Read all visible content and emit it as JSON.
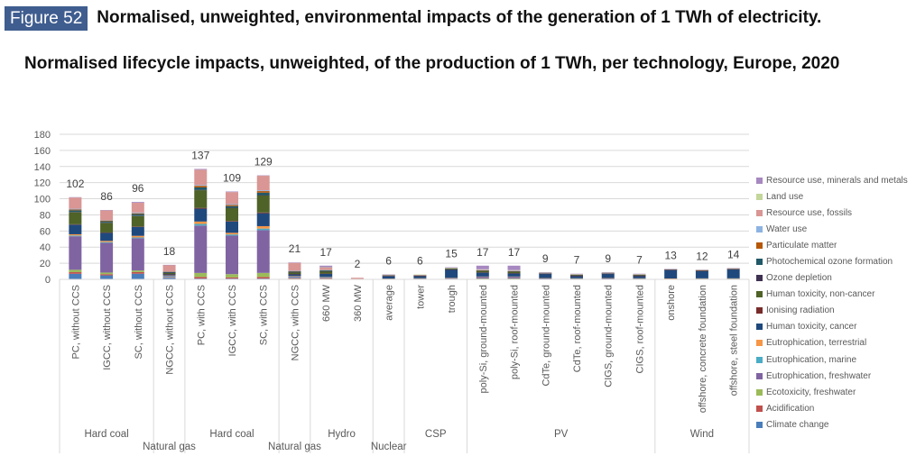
{
  "figure": {
    "label": "Figure 52",
    "caption": "Normalised, unweighted, environmental impacts of the generation of 1 TWh of electricity.",
    "badge_color": "#3f5d8f"
  },
  "chart_data": {
    "type": "bar",
    "stacked": true,
    "title": "Normalised lifecycle impacts, unweighted, of the production of 1 TWh, per technology, Europe, 2020",
    "xlabel": "",
    "ylabel": "",
    "ylim": [
      0,
      180
    ],
    "yticks": [
      0,
      20,
      40,
      60,
      80,
      100,
      120,
      140,
      160,
      180
    ],
    "grid": true,
    "legend_position": "right",
    "groups": [
      {
        "name": "Hard coal",
        "count": 3,
        "label_row": 1
      },
      {
        "name": "Natural gas",
        "count": 1,
        "label_row": 2
      },
      {
        "name": "Hard coal",
        "count": 3,
        "label_row": 1
      },
      {
        "name": "Natural gas",
        "count": 1,
        "label_row": 2
      },
      {
        "name": "Hydro",
        "count": 2,
        "label_row": 1
      },
      {
        "name": "Nuclear",
        "count": 1,
        "label_row": 2
      },
      {
        "name": "CSP",
        "count": 2,
        "label_row": 1
      },
      {
        "name": "PV",
        "count": 6,
        "label_row": 1
      },
      {
        "name": "Wind",
        "count": 3,
        "label_row": 1
      }
    ],
    "categories": [
      "PC, without CCS",
      "IGCC, without CCS",
      "SC, without CCS",
      "NGCC, without CCS",
      "PC, with CCS",
      "IGCC, with CCS",
      "SC, with CCS",
      "NGCC, with CCS",
      "660 MW",
      "360 MW",
      "average",
      "tower",
      "trough",
      "poly-Si, ground-mounted",
      "poly-Si, roof-mounted",
      "CdTe, ground-mounted",
      "CdTe, roof-mounted",
      "CIGS, ground-mounted",
      "CIGS, roof-mounted",
      "onshore",
      "offshore, concrete foundation",
      "offshore, steel foundation"
    ],
    "totals": [
      102,
      86,
      96,
      18,
      137,
      109,
      129,
      21,
      17,
      2,
      6,
      6,
      15,
      17,
      17,
      9,
      7,
      9,
      7,
      13,
      12,
      14
    ],
    "series": [
      {
        "name": "Climate change",
        "color": "#4a7ebb",
        "values": [
          7,
          5,
          7,
          2,
          1,
          1,
          1,
          0.5,
          0.5,
          0,
          0.2,
          0.3,
          0.3,
          0.4,
          0.4,
          0.3,
          0.3,
          0.3,
          0.3,
          0.3,
          0.3,
          0.3
        ]
      },
      {
        "name": "Acidification",
        "color": "#c0504d",
        "values": [
          2,
          1.5,
          2,
          0.5,
          2,
          1.5,
          2,
          0.5,
          0.5,
          0,
          0.1,
          0.2,
          0.2,
          0.3,
          0.3,
          0.1,
          0.1,
          0.1,
          0.1,
          0.2,
          0.3,
          0.3
        ]
      },
      {
        "name": "Ecotoxicity, freshwater",
        "color": "#9bbb59",
        "values": [
          3,
          2,
          2,
          0.5,
          5,
          4,
          5,
          0.5,
          0.5,
          0,
          0.2,
          0.2,
          0.3,
          0.4,
          0.4,
          0.2,
          0.2,
          0.2,
          0.2,
          0.2,
          0.2,
          0.2
        ]
      },
      {
        "name": "Eutrophication, freshwater",
        "color": "#8064a2",
        "values": [
          42,
          37,
          40,
          1,
          59,
          48,
          53,
          1.5,
          1,
          0,
          0.3,
          0.5,
          1,
          2,
          2,
          0.8,
          0.6,
          0.8,
          0.6,
          0.3,
          0.3,
          0.3
        ]
      },
      {
        "name": "Eutrophication, marine",
        "color": "#4bacc6",
        "values": [
          1,
          1,
          1,
          0.5,
          2,
          1.5,
          2,
          0.5,
          0.3,
          0,
          0.1,
          0.2,
          0.2,
          0.2,
          0.2,
          0.1,
          0.1,
          0.1,
          0.1,
          0.1,
          0.1,
          0.1
        ]
      },
      {
        "name": "Eutrophication, terrestrial",
        "color": "#f79646",
        "values": [
          1.5,
          1.5,
          2,
          0.5,
          3,
          2,
          3,
          0.5,
          0.3,
          0,
          0.1,
          0.1,
          0.1,
          0.2,
          0.2,
          0.1,
          0.1,
          0.1,
          0.1,
          0.1,
          0.1,
          0.1
        ]
      },
      {
        "name": "Human toxicity, cancer",
        "color": "#1f497d",
        "values": [
          12,
          10,
          11,
          1.5,
          16,
          14,
          16,
          2.5,
          4,
          0,
          3.5,
          3,
          11,
          5,
          4,
          5.5,
          3,
          5.5,
          3,
          11.5,
          9.5,
          11.5
        ]
      },
      {
        "name": "Ionising radiation",
        "color": "#772c2a",
        "values": [
          0.5,
          0.5,
          0.5,
          0.2,
          1,
          0.8,
          1,
          0.2,
          0.2,
          0,
          0.8,
          0.1,
          0.1,
          0.2,
          0.2,
          0.1,
          0.1,
          0.1,
          0.1,
          0.1,
          0.1,
          0.1
        ]
      },
      {
        "name": "Human toxicity, non-cancer",
        "color": "#4f6228",
        "values": [
          15,
          12,
          13,
          1.5,
          22,
          16,
          21,
          2,
          3,
          0,
          0.5,
          0.5,
          1,
          2,
          2,
          0.5,
          1,
          0.5,
          1,
          0.3,
          0.5,
          0.5
        ]
      },
      {
        "name": "Ozone depletion",
        "color": "#3f3151",
        "values": [
          0.5,
          0.5,
          0.5,
          0.2,
          0.5,
          0.5,
          0.5,
          0.2,
          0.1,
          0,
          0,
          0,
          0,
          0.1,
          0.1,
          0.1,
          0.1,
          0.1,
          0.1,
          0,
          0,
          0
        ]
      },
      {
        "name": "Photochemical ozone formation",
        "color": "#215968",
        "values": [
          2,
          1.5,
          2,
          1,
          3,
          2,
          3,
          1,
          1,
          0,
          0.1,
          0.2,
          0.3,
          0.3,
          0.3,
          0.1,
          0.2,
          0.1,
          0.2,
          0.1,
          0.2,
          0.2
        ]
      },
      {
        "name": "Particulate matter",
        "color": "#b65708",
        "values": [
          1,
          1,
          1,
          0.2,
          2,
          1.5,
          2,
          0.3,
          0.5,
          0,
          0.1,
          0.1,
          0.1,
          0.2,
          0.2,
          0.1,
          0.1,
          0.1,
          0.1,
          0.1,
          0.1,
          0.1
        ]
      },
      {
        "name": "Water use",
        "color": "#8db3e2",
        "values": [
          1,
          0.5,
          1,
          0.3,
          1,
          1,
          1,
          0.3,
          0.3,
          0,
          0.1,
          0.1,
          0.1,
          0.2,
          0.2,
          0.1,
          0.1,
          0.1,
          0.1,
          0.1,
          0.1,
          0.1
        ]
      },
      {
        "name": "Resource use, fossils",
        "color": "#d99694",
        "values": [
          14,
          12,
          12,
          8,
          19,
          15,
          18,
          10,
          3,
          2,
          0.2,
          0.3,
          0.4,
          0.5,
          0.5,
          0.3,
          0.3,
          0.3,
          0.3,
          0.2,
          0.2,
          0.2
        ]
      },
      {
        "name": "Land use",
        "color": "#c3d69b",
        "values": [
          0,
          0,
          0,
          0,
          0,
          0,
          0,
          0,
          0.2,
          0,
          0.1,
          0.5,
          0.2,
          0.5,
          0.5,
          0.2,
          0.2,
          0.2,
          0.2,
          0.1,
          0.1,
          0.1
        ]
      },
      {
        "name": "Resource use, minerals and metals",
        "color": "#a788c0",
        "values": [
          0.5,
          0.5,
          1,
          0.2,
          1,
          0.7,
          0.5,
          0.5,
          2.1,
          0,
          0.2,
          0,
          0.6,
          4.5,
          5.5,
          0.7,
          0.5,
          0.7,
          0.5,
          0.2,
          0.2,
          0.2
        ]
      }
    ]
  }
}
